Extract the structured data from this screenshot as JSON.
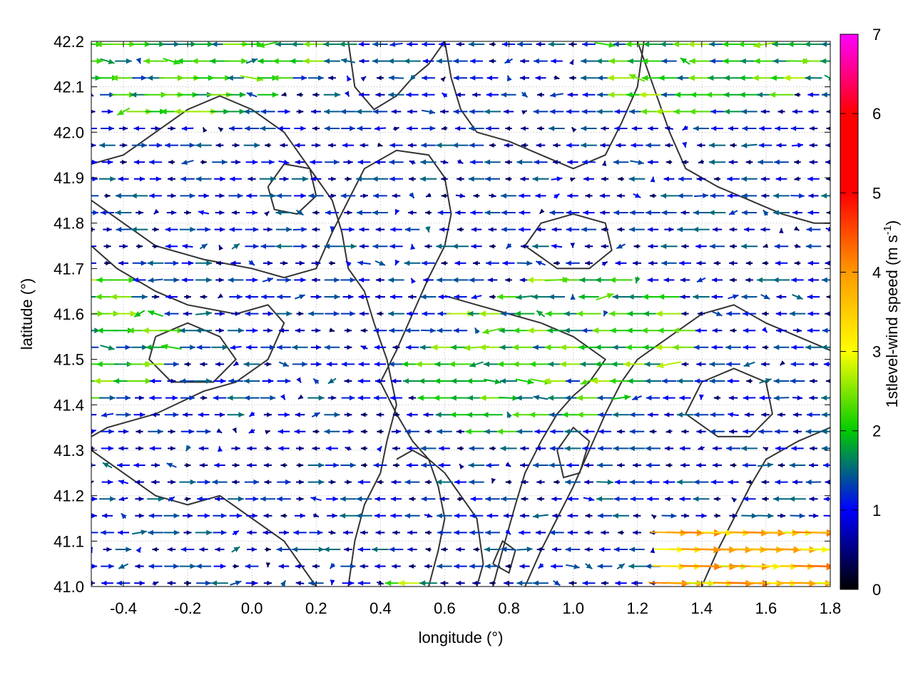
{
  "chart_data": {
    "type": "vector-field",
    "xlabel": "longitude (°)",
    "ylabel": "latitude (°)",
    "colorbar_label": "1stlevel-wind speed (m s",
    "colorbar_label_exp": "-1",
    "colorbar_label_close": ")",
    "xlim": [
      -0.5,
      1.8
    ],
    "ylim": [
      41.0,
      42.2
    ],
    "colorbar_range": [
      0,
      7
    ],
    "x_ticks": [
      "-0.4",
      "-0.2",
      "0.0",
      "0.2",
      "0.4",
      "0.6",
      "0.8",
      "1.0",
      "1.2",
      "1.4",
      "1.6",
      "1.8"
    ],
    "x_tick_values": [
      -0.4,
      -0.2,
      0.0,
      0.2,
      0.4,
      0.6,
      0.8,
      1.0,
      1.2,
      1.4,
      1.6,
      1.8
    ],
    "y_ticks": [
      "41.0",
      "41.1",
      "41.2",
      "41.3",
      "41.4",
      "41.5",
      "41.6",
      "41.7",
      "41.8",
      "41.9",
      "42.0",
      "42.1",
      "42.2"
    ],
    "y_tick_values": [
      41.0,
      41.1,
      41.2,
      41.3,
      41.4,
      41.5,
      41.6,
      41.7,
      41.8,
      41.9,
      42.0,
      42.1,
      42.2
    ],
    "colorbar_ticks": [
      "0",
      "1",
      "2",
      "3",
      "4",
      "5",
      "6",
      "7"
    ],
    "colorbar_tick_values": [
      0,
      1,
      2,
      3,
      4,
      5,
      6,
      7
    ],
    "colormap": [
      "#000000",
      "#0000ff",
      "#00cc00",
      "#ffff00",
      "#ff9900",
      "#ff0000",
      "#ff00ff"
    ],
    "grid": "dotted",
    "contours": [
      [
        [
          -0.5,
          41.75
        ],
        [
          -0.42,
          41.7
        ],
        [
          -0.3,
          41.65
        ],
        [
          -0.2,
          41.62
        ],
        [
          -0.05,
          41.6
        ],
        [
          0.05,
          41.62
        ],
        [
          0.1,
          41.58
        ],
        [
          0.05,
          41.5
        ],
        [
          -0.05,
          41.45
        ],
        [
          -0.15,
          41.43
        ],
        [
          -0.3,
          41.38
        ],
        [
          -0.45,
          41.35
        ],
        [
          -0.5,
          41.33
        ]
      ],
      [
        [
          -0.5,
          41.3
        ],
        [
          -0.4,
          41.25
        ],
        [
          -0.3,
          41.2
        ],
        [
          -0.2,
          41.18
        ],
        [
          -0.1,
          41.2
        ],
        [
          0.0,
          41.15
        ],
        [
          0.1,
          41.1
        ],
        [
          0.15,
          41.05
        ],
        [
          0.2,
          41.0
        ]
      ],
      [
        [
          -0.5,
          41.85
        ],
        [
          -0.4,
          41.8
        ],
        [
          -0.3,
          41.75
        ],
        [
          -0.15,
          41.72
        ],
        [
          0.0,
          41.7
        ],
        [
          0.1,
          41.68
        ],
        [
          0.2,
          41.7
        ],
        [
          0.25,
          41.78
        ],
        [
          0.3,
          41.85
        ],
        [
          0.35,
          41.92
        ],
        [
          0.45,
          41.96
        ],
        [
          0.55,
          41.95
        ],
        [
          0.6,
          41.9
        ],
        [
          0.62,
          41.82
        ],
        [
          0.6,
          41.75
        ],
        [
          0.55,
          41.68
        ],
        [
          0.5,
          41.6
        ],
        [
          0.45,
          41.52
        ],
        [
          0.4,
          41.45
        ]
      ],
      [
        [
          0.4,
          41.45
        ],
        [
          0.45,
          41.38
        ],
        [
          0.5,
          41.32
        ],
        [
          0.55,
          41.28
        ],
        [
          0.6,
          41.25
        ],
        [
          0.65,
          41.2
        ],
        [
          0.7,
          41.15
        ],
        [
          0.72,
          41.05
        ],
        [
          0.7,
          41.0
        ]
      ],
      [
        [
          0.3,
          41.0
        ],
        [
          0.32,
          41.1
        ],
        [
          0.35,
          41.18
        ],
        [
          0.4,
          41.25
        ],
        [
          0.42,
          41.32
        ],
        [
          0.45,
          41.4
        ],
        [
          0.42,
          41.5
        ],
        [
          0.38,
          41.58
        ],
        [
          0.35,
          41.65
        ],
        [
          0.3,
          41.7
        ],
        [
          0.28,
          41.78
        ],
        [
          0.25,
          41.85
        ],
        [
          0.2,
          41.9
        ],
        [
          0.15,
          41.95
        ],
        [
          0.1,
          42.0
        ],
        [
          0.0,
          42.05
        ],
        [
          -0.1,
          42.08
        ],
        [
          -0.2,
          42.05
        ],
        [
          -0.3,
          42.0
        ],
        [
          -0.4,
          41.95
        ],
        [
          -0.5,
          41.93
        ]
      ],
      [
        [
          0.85,
          41.0
        ],
        [
          0.9,
          41.08
        ],
        [
          0.95,
          41.15
        ],
        [
          1.0,
          41.22
        ],
        [
          1.05,
          41.3
        ],
        [
          1.1,
          41.38
        ],
        [
          1.15,
          41.45
        ],
        [
          1.2,
          41.5
        ],
        [
          1.3,
          41.55
        ],
        [
          1.4,
          41.6
        ],
        [
          1.5,
          41.62
        ],
        [
          1.6,
          41.58
        ],
        [
          1.7,
          41.55
        ],
        [
          1.8,
          41.52
        ]
      ],
      [
        [
          0.75,
          41.0
        ],
        [
          0.78,
          41.08
        ],
        [
          0.82,
          41.18
        ],
        [
          0.85,
          41.25
        ],
        [
          0.9,
          41.32
        ],
        [
          0.95,
          41.38
        ],
        [
          1.0,
          41.42
        ],
        [
          1.05,
          41.45
        ],
        [
          1.1,
          41.5
        ],
        [
          1.0,
          41.55
        ],
        [
          0.9,
          41.58
        ],
        [
          0.8,
          41.6
        ],
        [
          0.7,
          41.62
        ],
        [
          0.6,
          41.64
        ]
      ],
      [
        [
          0.55,
          41.0
        ],
        [
          0.58,
          41.08
        ],
        [
          0.6,
          41.15
        ],
        [
          0.58,
          41.22
        ],
        [
          0.55,
          41.28
        ],
        [
          0.5,
          41.3
        ],
        [
          0.45,
          41.28
        ]
      ],
      [
        [
          1.2,
          42.2
        ],
        [
          1.25,
          42.1
        ],
        [
          1.3,
          42.0
        ],
        [
          1.35,
          41.92
        ],
        [
          1.45,
          41.88
        ],
        [
          1.55,
          41.85
        ],
        [
          1.65,
          41.82
        ],
        [
          1.75,
          41.8
        ],
        [
          1.8,
          41.8
        ]
      ],
      [
        [
          0.6,
          42.2
        ],
        [
          0.62,
          42.12
        ],
        [
          0.65,
          42.05
        ],
        [
          0.7,
          42.0
        ],
        [
          0.8,
          41.98
        ],
        [
          0.9,
          41.95
        ],
        [
          1.0,
          41.92
        ],
        [
          1.1,
          41.95
        ],
        [
          1.15,
          42.02
        ],
        [
          1.2,
          42.1
        ],
        [
          1.22,
          42.2
        ]
      ],
      [
        [
          0.3,
          42.2
        ],
        [
          0.32,
          42.1
        ],
        [
          0.38,
          42.05
        ],
        [
          0.45,
          42.08
        ],
        [
          0.5,
          42.12
        ],
        [
          0.55,
          42.15
        ],
        [
          0.6,
          42.2
        ]
      ],
      [
        [
          1.4,
          41.0
        ],
        [
          1.45,
          41.08
        ],
        [
          1.5,
          41.15
        ],
        [
          1.55,
          41.22
        ],
        [
          1.6,
          41.28
        ],
        [
          1.7,
          41.32
        ],
        [
          1.8,
          41.35
        ]
      ],
      [
        [
          0.95,
          41.3
        ],
        [
          1.0,
          41.35
        ],
        [
          1.05,
          41.32
        ],
        [
          1.02,
          41.25
        ],
        [
          0.97,
          41.24
        ],
        [
          0.95,
          41.3
        ]
      ],
      [
        [
          0.75,
          41.05
        ],
        [
          0.78,
          41.1
        ],
        [
          0.82,
          41.08
        ],
        [
          0.8,
          41.03
        ],
        [
          0.75,
          41.05
        ]
      ],
      [
        [
          -0.3,
          41.55
        ],
        [
          -0.2,
          41.58
        ],
        [
          -0.1,
          41.55
        ],
        [
          -0.05,
          41.5
        ],
        [
          -0.12,
          41.45
        ],
        [
          -0.25,
          41.45
        ],
        [
          -0.32,
          41.5
        ],
        [
          -0.3,
          41.55
        ]
      ],
      [
        [
          1.35,
          41.38
        ],
        [
          1.4,
          41.45
        ],
        [
          1.5,
          41.48
        ],
        [
          1.6,
          41.45
        ],
        [
          1.62,
          41.38
        ],
        [
          1.55,
          41.33
        ],
        [
          1.45,
          41.33
        ],
        [
          1.35,
          41.38
        ]
      ],
      [
        [
          0.05,
          41.88
        ],
        [
          0.1,
          41.93
        ],
        [
          0.18,
          41.92
        ],
        [
          0.2,
          41.86
        ],
        [
          0.14,
          41.82
        ],
        [
          0.07,
          41.83
        ],
        [
          0.05,
          41.88
        ]
      ],
      [
        [
          0.85,
          41.75
        ],
        [
          0.9,
          41.8
        ],
        [
          1.0,
          41.82
        ],
        [
          1.1,
          41.8
        ],
        [
          1.12,
          41.74
        ],
        [
          1.05,
          41.7
        ],
        [
          0.95,
          41.7
        ],
        [
          0.85,
          41.75
        ]
      ]
    ]
  }
}
